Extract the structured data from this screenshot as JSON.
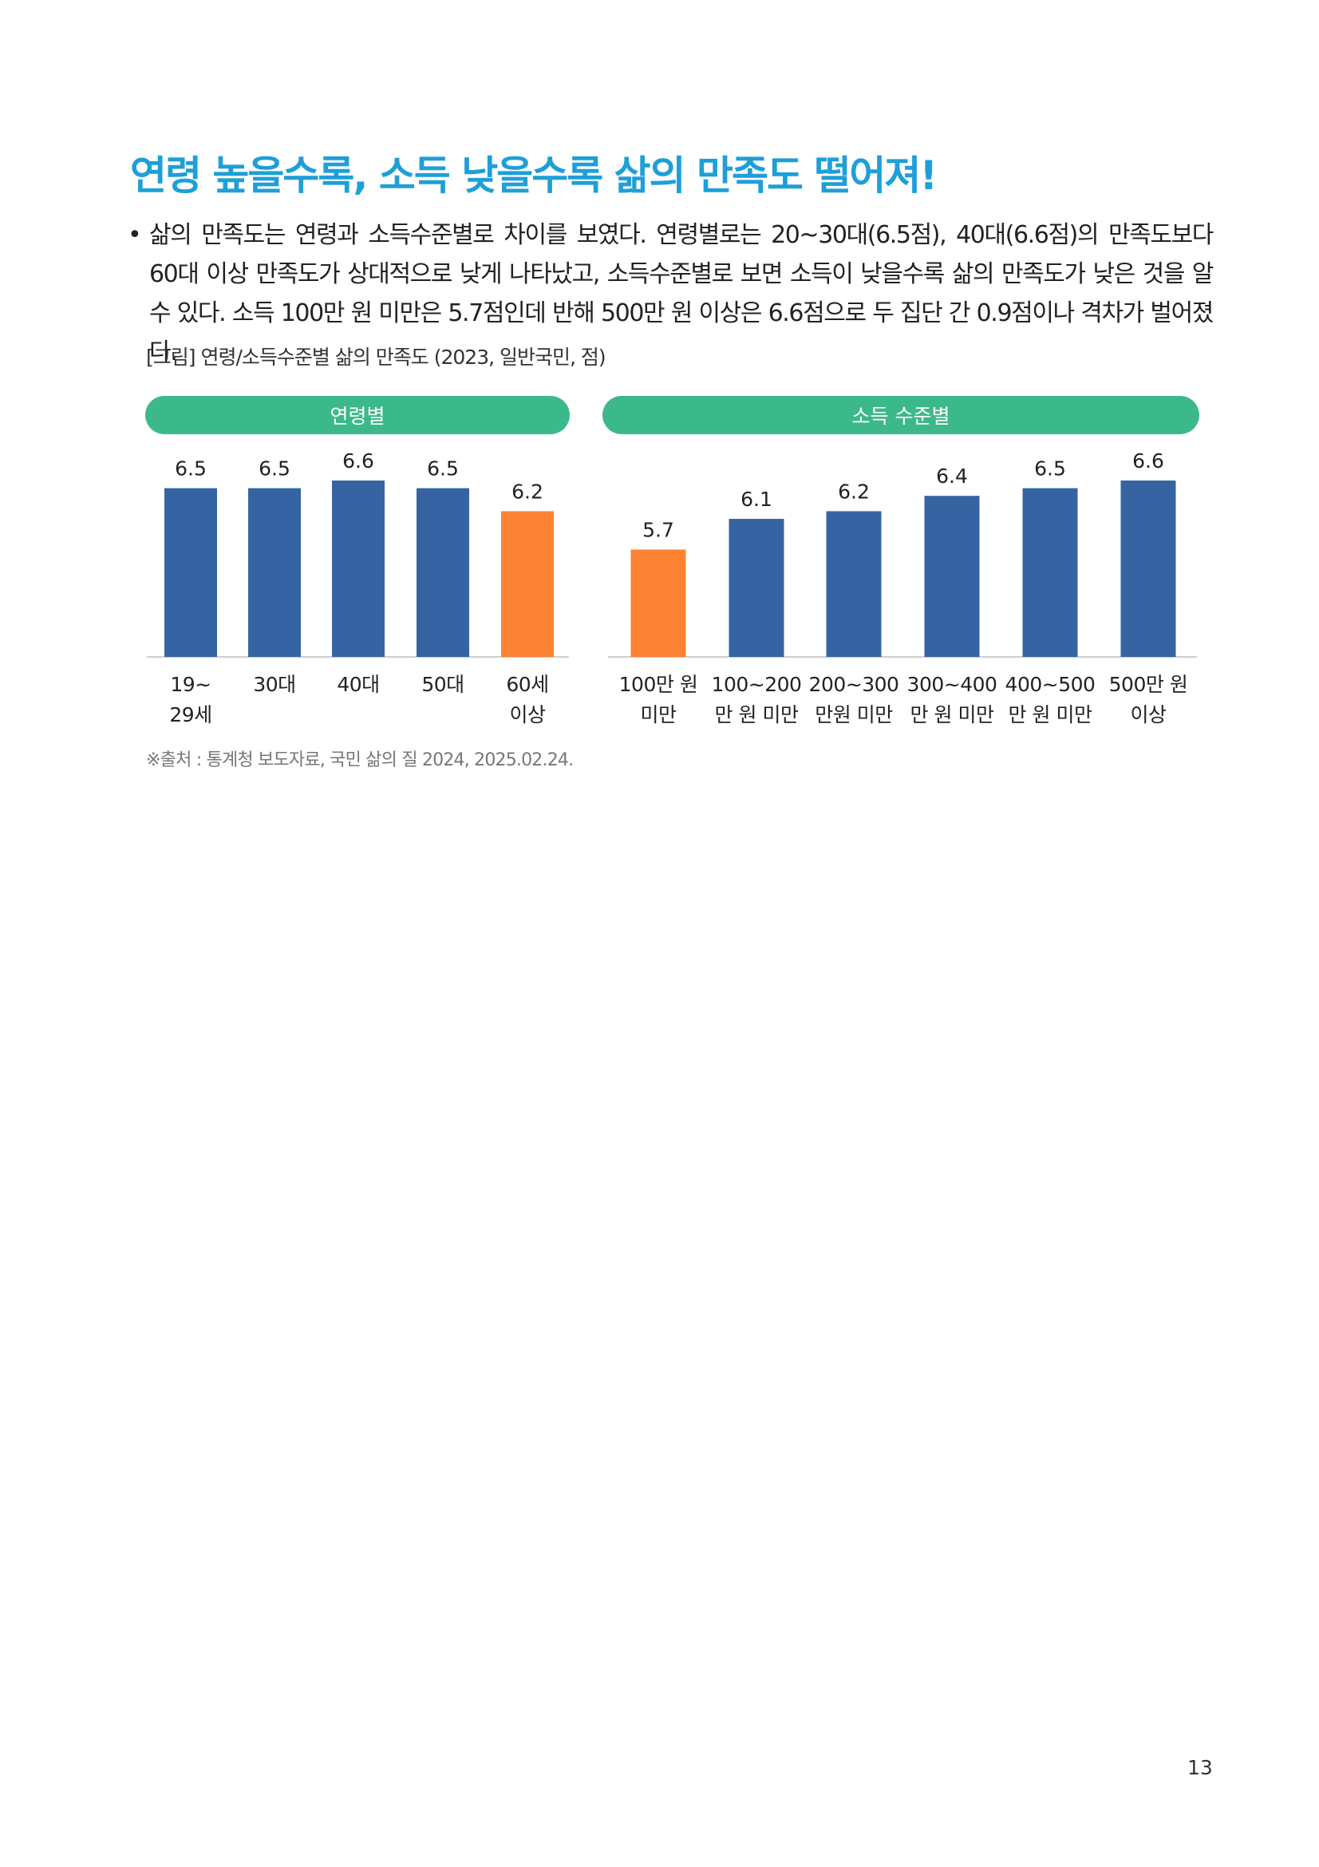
{
  "page": {
    "title": "연령 높을수록, 소득 낮을수록 삶의 만족도 떨어져!",
    "bullet_symbol": "•",
    "paragraph": "삶의 만족도는 연령과 소득수준별로 차이를 보였다. 연령별로는 20~30대(6.5점), 40대(6.6점)의 만족도보다 60대 이상 만족도가 상대적으로 낮게 나타났고, 소득수준별로 보면 소득이 낮을수록 삶의 만족도가 낮은 것을 알 수 있다. 소득 100만 원 미만은 5.7점인데 반해 500만 원 이상은 6.6점으로 두 집단 간 0.9점이나 격차가 벌어졌다.",
    "figure_caption": "[그림] 연령/소득수준별 삶의 만족도 (2023, 일반국민, 점)",
    "source": "※출처 : 통계청 보도자료, 국민 삶의 질 2024, 2025.02.24.",
    "page_number": "13"
  },
  "colors": {
    "title": "#1e9fd8",
    "pill": "#3cb98a",
    "bar_default": "#3664a2",
    "bar_highlight": "#fe8234"
  },
  "chart_data": [
    {
      "type": "bar",
      "title": "연령별",
      "categories": [
        [
          "19~",
          "29세"
        ],
        [
          "30대"
        ],
        [
          "40대"
        ],
        [
          "50대"
        ],
        [
          "60세",
          "이상"
        ]
      ],
      "values": [
        6.5,
        6.5,
        6.6,
        6.5,
        6.2
      ],
      "value_labels": [
        "6.5",
        "6.5",
        "6.6",
        "6.5",
        "6.2"
      ],
      "highlight": [
        4
      ],
      "ylim": [
        4.3,
        6.6
      ],
      "grid": false,
      "legend": "none"
    },
    {
      "type": "bar",
      "title": "소득 수준별",
      "categories": [
        [
          "100만 원",
          "미만"
        ],
        [
          "100~200",
          "만 원 미만"
        ],
        [
          "200~300",
          "만원 미만"
        ],
        [
          "300~400",
          "만 원 미만"
        ],
        [
          "400~500",
          "만 원 미만"
        ],
        [
          "500만 원",
          "이상"
        ]
      ],
      "values": [
        5.7,
        6.1,
        6.2,
        6.4,
        6.5,
        6.6
      ],
      "value_labels": [
        "5.7",
        "6.1",
        "6.2",
        "6.4",
        "6.5",
        "6.6"
      ],
      "highlight": [
        0
      ],
      "ylim": [
        4.3,
        6.6
      ],
      "grid": false,
      "legend": "none"
    }
  ]
}
